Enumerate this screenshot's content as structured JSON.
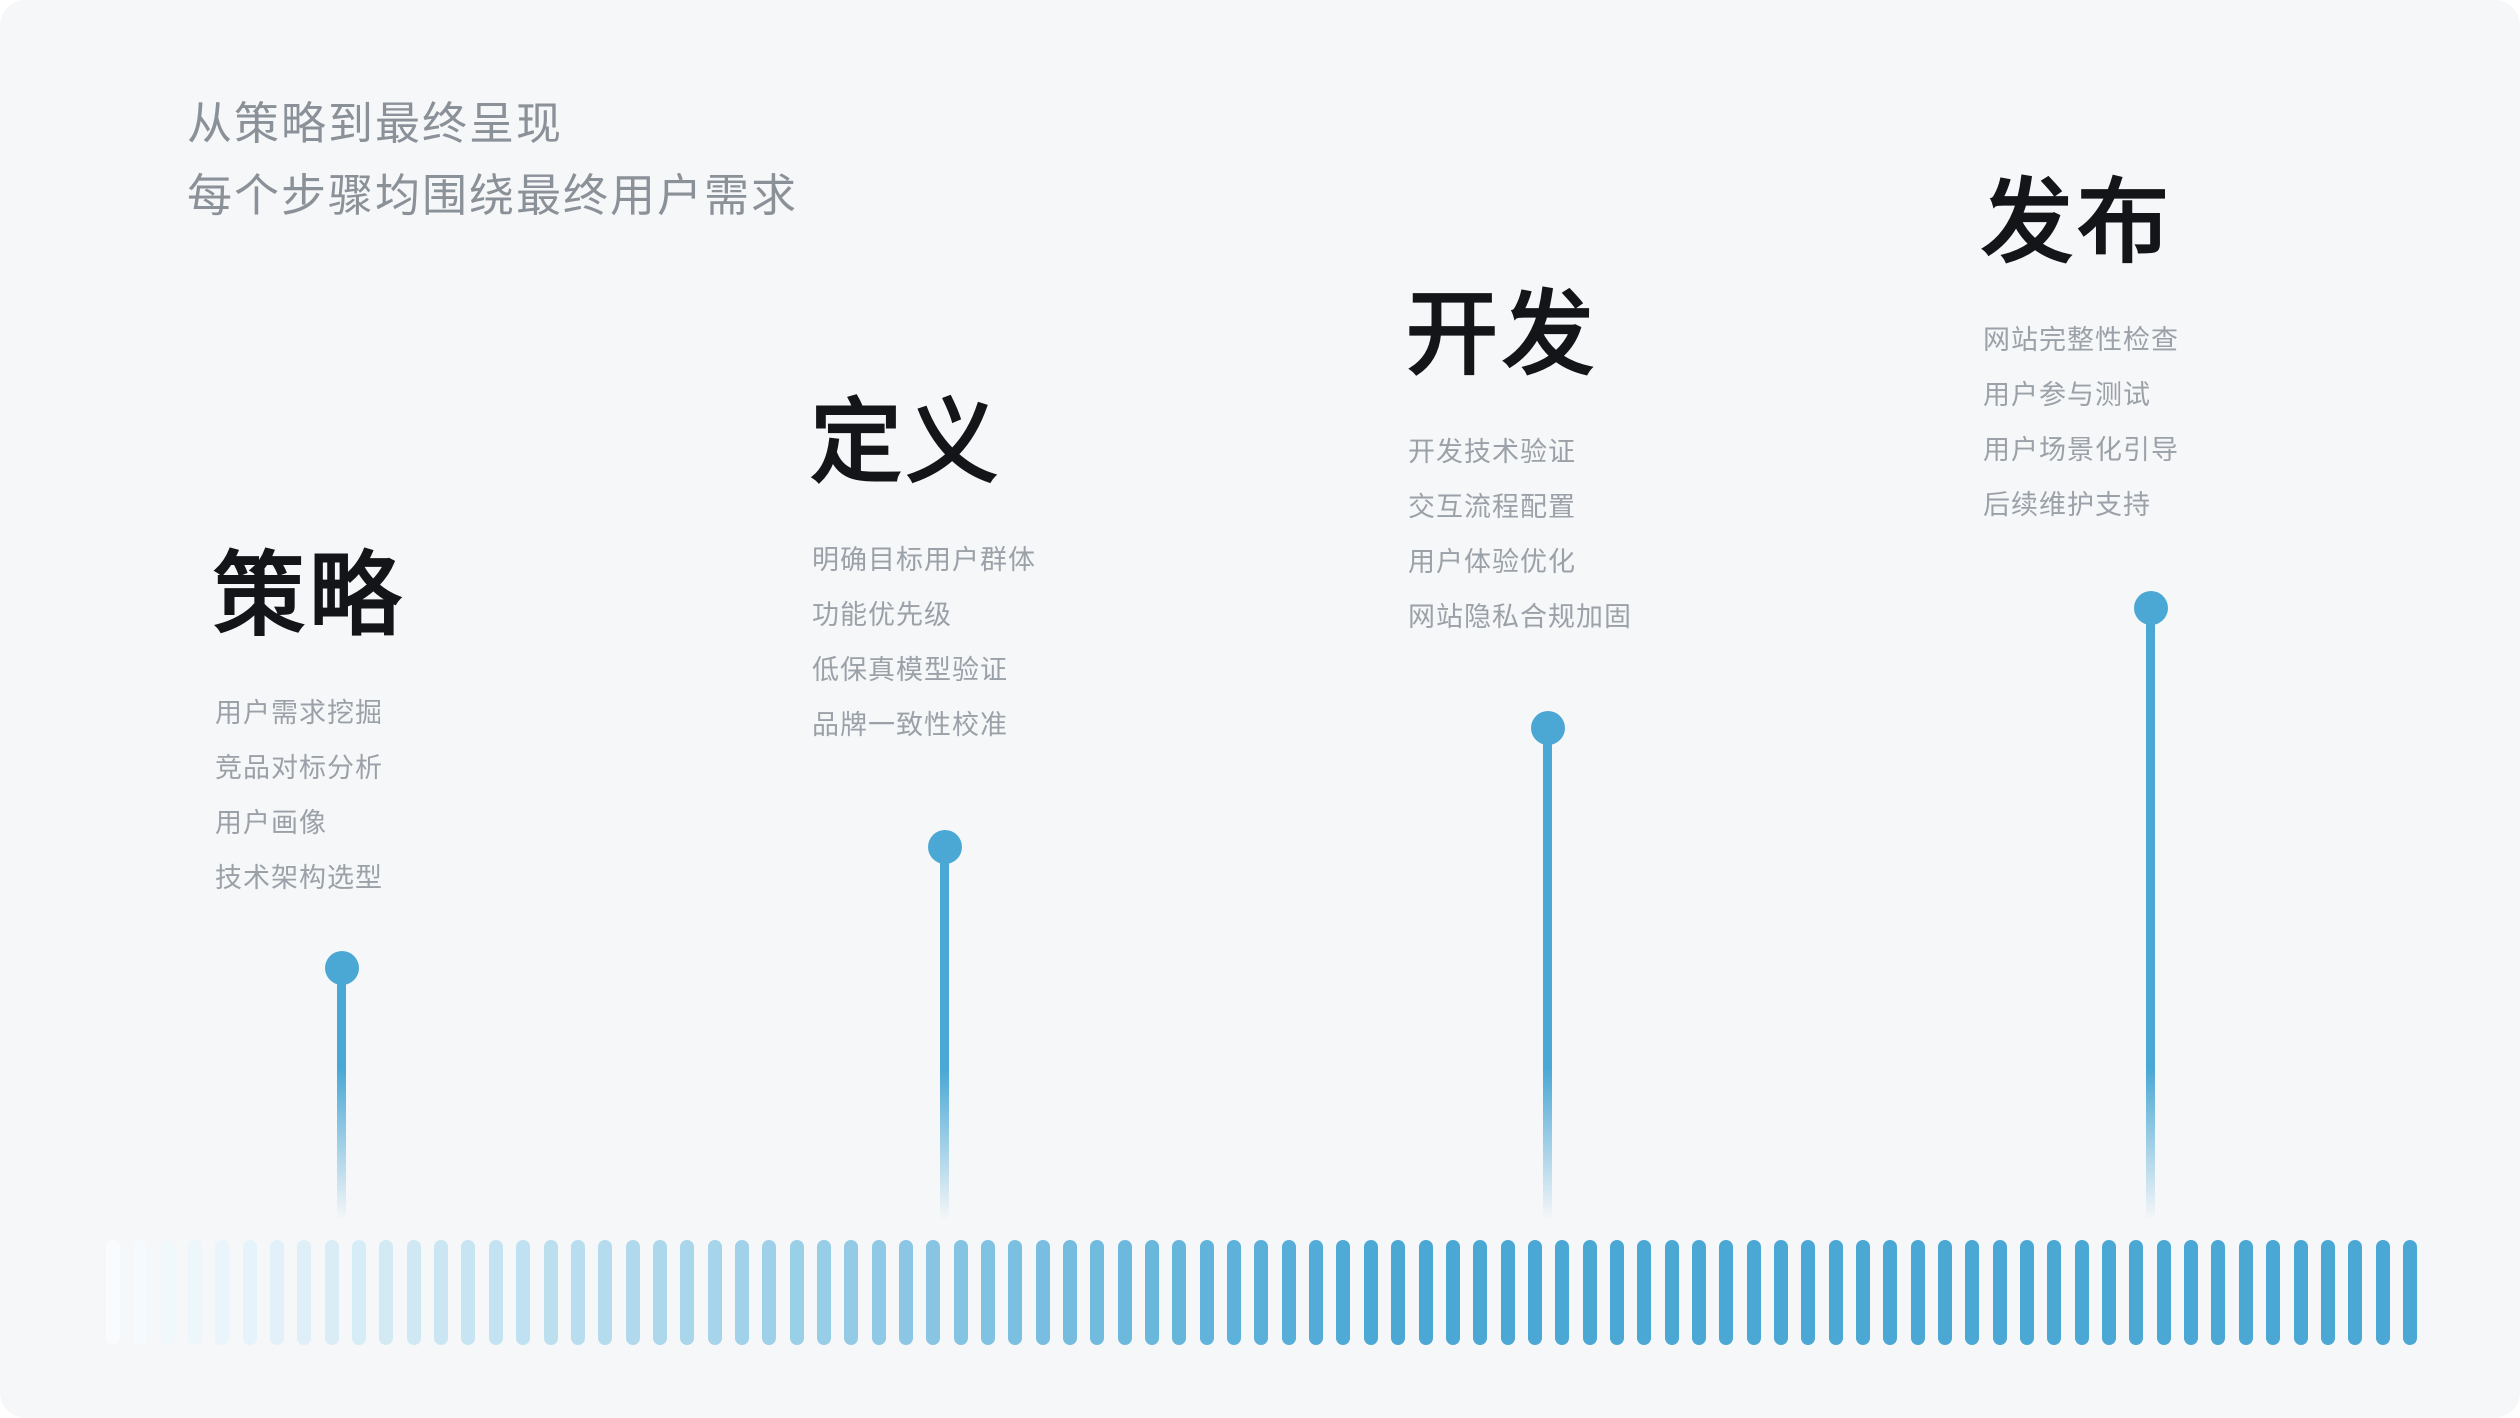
{
  "page": {
    "background": "#f6f7f8",
    "accent": "#4ba8d5"
  },
  "header": {
    "line1": "从策略到最终呈现",
    "line2": "每个步骤均围绕最终用户需求"
  },
  "stages": [
    {
      "title": "策略",
      "items": [
        "用户需求挖掘",
        "竞品对标分析",
        "用户画像",
        "技术架构选型"
      ]
    },
    {
      "title": "定义",
      "items": [
        "明确目标用户群体",
        "功能优先级",
        "低保真模型验证",
        "品牌一致性校准"
      ]
    },
    {
      "title": "开发",
      "items": [
        "开发技术验证",
        "交互流程配置",
        "用户体验优化",
        "网站隐私合规加固"
      ]
    },
    {
      "title": "发布",
      "items": [
        "网站完整性检查",
        "用户参与测试",
        "用户场景化引导",
        "后续维护支持"
      ]
    }
  ],
  "timeline": {
    "bar_count": 85,
    "start_color": "#f8fcfe",
    "end_color": "#4ba8d5",
    "full_saturation_at": 0.55
  }
}
